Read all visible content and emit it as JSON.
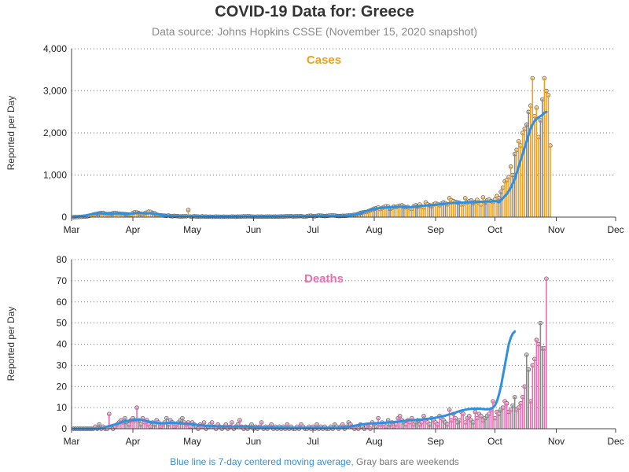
{
  "title": "COVID-19 Data for: Greece",
  "subtitle": "Data source: Johns Hopkins CSSE (November 15, 2020 snapshot)",
  "footnote": {
    "blue": "Blue line is 7-day centered moving average,",
    "gray": "Gray bars are weekends"
  },
  "colors": {
    "cases": "#f0a020",
    "deaths": "#e96fb3",
    "average": "#2f8fe0",
    "weekend": "#888888"
  },
  "chart_data": [
    {
      "type": "bar",
      "title": "Cases",
      "xlabel": "",
      "ylabel": "Reported per Day",
      "x_start": "2020-03-01",
      "x_end": "2020-12-01",
      "x_ticks": [
        "Mar",
        "Apr",
        "May",
        "Jun",
        "Jul",
        "Aug",
        "Sep",
        "Oct",
        "Nov",
        "Dec"
      ],
      "ylim": [
        0,
        4000
      ],
      "y_ticks": [
        "0",
        "1,000",
        "2,000",
        "3,000",
        "4,000"
      ],
      "grid": "horizontal dotted",
      "series": [
        {
          "name": "Cases",
          "values": [
            0,
            2,
            3,
            5,
            8,
            12,
            15,
            20,
            30,
            45,
            60,
            70,
            80,
            90,
            95,
            100,
            85,
            70,
            75,
            80,
            95,
            100,
            90,
            85,
            80,
            75,
            70,
            65,
            60,
            55,
            100,
            120,
            110,
            95,
            80,
            70,
            90,
            110,
            130,
            125,
            100,
            90,
            60,
            50,
            45,
            40,
            35,
            30,
            40,
            25,
            20,
            30,
            25,
            20,
            15,
            18,
            22,
            20,
            170,
            15,
            12,
            20,
            16,
            14,
            10,
            18,
            12,
            15,
            10,
            12,
            8,
            10,
            15,
            12,
            10,
            8,
            12,
            10,
            8,
            10,
            15,
            12,
            10,
            14,
            12,
            15,
            18,
            16,
            20,
            18,
            15,
            12,
            10,
            15,
            12,
            14,
            10,
            12,
            15,
            13,
            12,
            11,
            14,
            12,
            15,
            16,
            14,
            18,
            20,
            22,
            25,
            15,
            18,
            20,
            22,
            25,
            15,
            10,
            20,
            30,
            35,
            25,
            20,
            30,
            40,
            35,
            30,
            25,
            30,
            35,
            40,
            45,
            38,
            30,
            25,
            28,
            32,
            30,
            35,
            40,
            45,
            50,
            55,
            60,
            75,
            100,
            110,
            120,
            125,
            140,
            160,
            180,
            200,
            210,
            230,
            190,
            220,
            240,
            260,
            250,
            200,
            220,
            250,
            240,
            260,
            270,
            280,
            250,
            230,
            240,
            210,
            200,
            260,
            280,
            250,
            300,
            250,
            230,
            350,
            300,
            280,
            260,
            300,
            330,
            310,
            280,
            320,
            350,
            330,
            300,
            450,
            400,
            380,
            360,
            350,
            340,
            300,
            320,
            450,
            350,
            380,
            400,
            330,
            360,
            410,
            340,
            300,
            470,
            350,
            400,
            420,
            380,
            360,
            420,
            500,
            450,
            600,
            700,
            850,
            880,
            950,
            1200,
            1000,
            1500,
            1600,
            1800,
            1700,
            2000,
            2100,
            2200,
            2500,
            2650,
            3300,
            2400,
            2600,
            1900,
            2300,
            2800,
            3300,
            3000,
            2900,
            1700
          ]
        },
        {
          "name": "7-day average",
          "values": [
            0,
            5,
            10,
            20,
            25,
            30,
            40,
            50,
            60,
            70,
            80,
            85,
            90,
            95,
            95,
            90,
            85,
            85,
            85,
            85,
            88,
            90,
            90,
            88,
            85,
            80,
            78,
            75,
            75,
            80,
            88,
            95,
            100,
            105,
            100,
            95,
            92,
            90,
            92,
            95,
            90,
            80,
            70,
            60,
            50,
            45,
            40,
            38,
            35,
            30,
            28,
            26,
            25,
            23,
            22,
            21,
            20,
            20,
            20,
            18,
            17,
            16,
            16,
            15,
            15,
            14,
            13,
            13,
            12,
            12,
            12,
            12,
            12,
            12,
            12,
            12,
            12,
            12,
            12,
            12,
            13,
            13,
            14,
            14,
            15,
            15,
            16,
            16,
            16,
            16,
            15,
            15,
            14,
            14,
            14,
            14,
            14,
            14,
            14,
            14,
            14,
            14,
            15,
            15,
            16,
            17,
            18,
            19,
            20,
            20,
            20,
            21,
            21,
            21,
            22,
            22,
            22,
            22,
            23,
            25,
            27,
            28,
            29,
            30,
            31,
            31,
            31,
            31,
            32,
            33,
            34,
            35,
            35,
            35,
            34,
            33,
            33,
            34,
            36,
            40,
            45,
            50,
            57,
            67,
            80,
            95,
            110,
            125,
            140,
            155,
            170,
            183,
            195,
            205,
            212,
            218,
            222,
            226,
            230,
            234,
            236,
            238,
            240,
            242,
            244,
            245,
            245,
            243,
            240,
            238,
            236,
            240,
            245,
            250,
            255,
            260,
            265,
            270,
            275,
            278,
            282,
            286,
            290,
            295,
            300,
            305,
            310,
            315,
            320,
            325,
            330,
            333,
            336,
            338,
            340,
            342,
            344,
            346,
            348,
            350,
            352,
            354,
            356,
            358,
            360,
            362,
            364,
            366,
            368,
            370,
            372,
            374,
            376,
            378,
            380,
            350,
            400,
            450,
            500,
            550,
            620,
            700,
            800,
            900,
            1050,
            1200,
            1350,
            1500,
            1650,
            1800,
            1950,
            2100,
            2200,
            2280,
            2330,
            2370,
            2400,
            2430,
            2480,
            2500
          ]
        }
      ]
    },
    {
      "type": "bar",
      "title": "Deaths",
      "xlabel": "",
      "ylabel": "Reported per Day",
      "x_start": "2020-03-01",
      "x_end": "2020-12-01",
      "x_ticks": [
        "Mar",
        "Apr",
        "May",
        "Jun",
        "Jul",
        "Aug",
        "Sep",
        "Oct",
        "Nov",
        "Dec"
      ],
      "ylim": [
        0,
        80
      ],
      "y_ticks": [
        "0",
        "10",
        "20",
        "30",
        "40",
        "50",
        "60",
        "70",
        "80"
      ],
      "grid": "horizontal dotted",
      "series": [
        {
          "name": "Deaths",
          "values": [
            0,
            0,
            0,
            0,
            0,
            0,
            0,
            0,
            0,
            0,
            0,
            1,
            0,
            2,
            0,
            1,
            0,
            0,
            7,
            1,
            0,
            1,
            2,
            3,
            4,
            3,
            5,
            3,
            2,
            4,
            5,
            4,
            10,
            4,
            2,
            5,
            3,
            4,
            2,
            1,
            3,
            2,
            4,
            3,
            1,
            2,
            3,
            5,
            2,
            4,
            3,
            1,
            2,
            3,
            4,
            5,
            3,
            2,
            3,
            1,
            3,
            2,
            1,
            0,
            2,
            1,
            3,
            0,
            1,
            2,
            3,
            1,
            0,
            2,
            1,
            0,
            1,
            2,
            0,
            1,
            3,
            0,
            1,
            2,
            4,
            1,
            0,
            1,
            0,
            1,
            2,
            0,
            1,
            0,
            1,
            3,
            0,
            1,
            0,
            1,
            2,
            0,
            1,
            0,
            1,
            0,
            1,
            0,
            2,
            0,
            1,
            0,
            0,
            1,
            0,
            2,
            1,
            0,
            0,
            1,
            0,
            1,
            0,
            2,
            0,
            1,
            0,
            1,
            0,
            0,
            1,
            0,
            2,
            1,
            0,
            1,
            2,
            0,
            1,
            3,
            2,
            1,
            0,
            1,
            0,
            2,
            1,
            0,
            1,
            2,
            0,
            3,
            2,
            1,
            5,
            2,
            3,
            2,
            1,
            4,
            2,
            3,
            1,
            2,
            5,
            6,
            4,
            3,
            2,
            4,
            3,
            5,
            2,
            3,
            4,
            2,
            3,
            6,
            4,
            3,
            2,
            5,
            4,
            3,
            2,
            6,
            5,
            4,
            3,
            2,
            9,
            4,
            7,
            5,
            3,
            4,
            8,
            7,
            3,
            5,
            6,
            4,
            3,
            8,
            5,
            7,
            6,
            4,
            5,
            6,
            7,
            9,
            13,
            5,
            8,
            7,
            9,
            10,
            13,
            12,
            8,
            9,
            11,
            15,
            9,
            10,
            12,
            15,
            20,
            35,
            28,
            13,
            30,
            33,
            42,
            40,
            50,
            38,
            38,
            71
          ]
        },
        {
          "name": "7-day average",
          "values": [
            0,
            0,
            0,
            0,
            0,
            0,
            0,
            0,
            0,
            0,
            0,
            0,
            0,
            0,
            0.3,
            0.5,
            0.8,
            1,
            1.3,
            1.5,
            1.8,
            2,
            2.3,
            2.6,
            3,
            3.2,
            3.5,
            3.7,
            3.8,
            4,
            4.1,
            4.2,
            4.3,
            4.3,
            4.2,
            4,
            3.8,
            3.6,
            3.4,
            3.2,
            3,
            2.9,
            2.8,
            2.7,
            2.6,
            2.6,
            2.6,
            2.7,
            2.8,
            2.9,
            2.9,
            2.8,
            2.7,
            2.6,
            2.5,
            2.5,
            2.4,
            2.4,
            2.3,
            2.2,
            2.1,
            2,
            1.9,
            1.8,
            1.7,
            1.6,
            1.5,
            1.4,
            1.3,
            1.2,
            1.2,
            1.1,
            1.1,
            1,
            1,
            1,
            1,
            1,
            1,
            1,
            1,
            1,
            1,
            1,
            1,
            1,
            1,
            1,
            1,
            0.9,
            0.9,
            0.9,
            0.8,
            0.8,
            0.8,
            0.8,
            0.7,
            0.7,
            0.7,
            0.7,
            0.6,
            0.6,
            0.6,
            0.6,
            0.6,
            0.6,
            0.6,
            0.5,
            0.5,
            0.5,
            0.5,
            0.5,
            0.5,
            0.5,
            0.5,
            0.5,
            0.5,
            0.5,
            0.5,
            0.5,
            0.5,
            0.5,
            0.5,
            0.5,
            0.5,
            0.5,
            0.5,
            0.5,
            0.5,
            0.5,
            0.5,
            0.5,
            0.5,
            0.5,
            0.5,
            0.6,
            0.6,
            0.7,
            0.8,
            0.9,
            1,
            1.2,
            1.4,
            1.6,
            1.8,
            2,
            2.1,
            2.2,
            2.3,
            2.4,
            2.5,
            2.5,
            2.6,
            2.6,
            2.7,
            2.7,
            2.8,
            2.8,
            2.9,
            3,
            3,
            3.1,
            3.2,
            3.3,
            3.4,
            3.5,
            3.6,
            3.7,
            3.8,
            3.9,
            4,
            4,
            4.1,
            4.1,
            4.2,
            4.3,
            4.4,
            4.5,
            4.6,
            4.7,
            4.8,
            4.9,
            5,
            5.2,
            5.4,
            5.6,
            5.8,
            6,
            6.2,
            6.5,
            6.8,
            7,
            7.3,
            7.6,
            8,
            8.3,
            8.6,
            8.8,
            9,
            9.2,
            9.3,
            9.4,
            9.5,
            9.5,
            9.5,
            9.5,
            9.4,
            9.3,
            9.2,
            9.2,
            9.3,
            9.5,
            10,
            11,
            13,
            16,
            20,
            25,
            30,
            35,
            40,
            43,
            45,
            46
          ]
        }
      ]
    }
  ]
}
